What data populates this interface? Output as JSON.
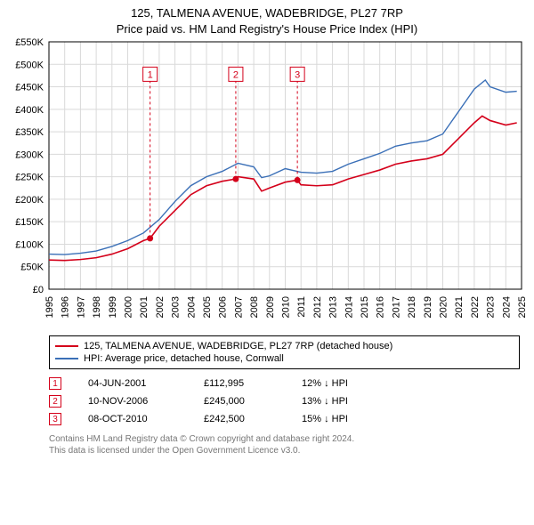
{
  "title_line1": "125, TALMENA AVENUE, WADEBRIDGE, PL27 7RP",
  "title_line2": "Price paid vs. HM Land Registry's House Price Index (HPI)",
  "chart": {
    "type": "line",
    "background_color": "#ffffff",
    "grid_color": "#d9d9d9",
    "axis_color": "#000000",
    "label_fontsize": 11,
    "x_years": [
      1995,
      1996,
      1997,
      1998,
      1999,
      2000,
      2001,
      2002,
      2003,
      2004,
      2005,
      2006,
      2007,
      2008,
      2009,
      2010,
      2011,
      2012,
      2013,
      2014,
      2015,
      2016,
      2017,
      2018,
      2019,
      2020,
      2021,
      2022,
      2023,
      2024,
      2025
    ],
    "y_ticks": [
      0,
      50000,
      100000,
      150000,
      200000,
      250000,
      300000,
      350000,
      400000,
      450000,
      500000,
      550000
    ],
    "y_tick_labels": [
      "£0",
      "£50K",
      "£100K",
      "£150K",
      "£200K",
      "£250K",
      "£300K",
      "£350K",
      "£400K",
      "£450K",
      "£500K",
      "£550K"
    ],
    "ylim": [
      0,
      550000
    ],
    "xlim": [
      1995,
      2025
    ],
    "series": [
      {
        "name": "property",
        "label": "125, TALMENA AVENUE, WADEBRIDGE, PL27 7RP (detached house)",
        "color": "#d4001a",
        "line_width": 1.6,
        "points": [
          [
            1995,
            65000
          ],
          [
            1996,
            64000
          ],
          [
            1997,
            66000
          ],
          [
            1998,
            70000
          ],
          [
            1999,
            78000
          ],
          [
            2000,
            90000
          ],
          [
            2001,
            108000
          ],
          [
            2001.42,
            112995
          ],
          [
            2002,
            140000
          ],
          [
            2003,
            175000
          ],
          [
            2004,
            210000
          ],
          [
            2005,
            230000
          ],
          [
            2006,
            240000
          ],
          [
            2006.86,
            245000
          ],
          [
            2007,
            250000
          ],
          [
            2008,
            245000
          ],
          [
            2008.5,
            218000
          ],
          [
            2009,
            225000
          ],
          [
            2010,
            238000
          ],
          [
            2010.77,
            242500
          ],
          [
            2011,
            232000
          ],
          [
            2012,
            230000
          ],
          [
            2013,
            232000
          ],
          [
            2014,
            245000
          ],
          [
            2015,
            255000
          ],
          [
            2016,
            265000
          ],
          [
            2017,
            278000
          ],
          [
            2018,
            285000
          ],
          [
            2019,
            290000
          ],
          [
            2020,
            300000
          ],
          [
            2021,
            335000
          ],
          [
            2022,
            370000
          ],
          [
            2022.5,
            385000
          ],
          [
            2023,
            375000
          ],
          [
            2024,
            365000
          ],
          [
            2024.7,
            370000
          ]
        ]
      },
      {
        "name": "hpi",
        "label": "HPI: Average price, detached house, Cornwall",
        "color": "#3a6fb7",
        "line_width": 1.4,
        "points": [
          [
            1995,
            78000
          ],
          [
            1996,
            77000
          ],
          [
            1997,
            80000
          ],
          [
            1998,
            85000
          ],
          [
            1999,
            95000
          ],
          [
            2000,
            108000
          ],
          [
            2001,
            125000
          ],
          [
            2002,
            155000
          ],
          [
            2003,
            195000
          ],
          [
            2004,
            230000
          ],
          [
            2005,
            250000
          ],
          [
            2006,
            262000
          ],
          [
            2007,
            280000
          ],
          [
            2008,
            272000
          ],
          [
            2008.5,
            248000
          ],
          [
            2009,
            252000
          ],
          [
            2010,
            268000
          ],
          [
            2011,
            260000
          ],
          [
            2012,
            258000
          ],
          [
            2013,
            262000
          ],
          [
            2014,
            278000
          ],
          [
            2015,
            290000
          ],
          [
            2016,
            302000
          ],
          [
            2017,
            318000
          ],
          [
            2018,
            325000
          ],
          [
            2019,
            330000
          ],
          [
            2020,
            345000
          ],
          [
            2021,
            395000
          ],
          [
            2022,
            445000
          ],
          [
            2022.7,
            465000
          ],
          [
            2023,
            450000
          ],
          [
            2024,
            438000
          ],
          [
            2024.7,
            440000
          ]
        ]
      }
    ],
    "sale_markers": [
      {
        "n": "1",
        "x": 2001.42,
        "y_flag": 478000,
        "y_dot": 112995
      },
      {
        "n": "2",
        "x": 2006.86,
        "y_flag": 478000,
        "y_dot": 245000
      },
      {
        "n": "3",
        "x": 2010.77,
        "y_flag": 478000,
        "y_dot": 242500
      }
    ],
    "marker_border_color": "#d4001a",
    "marker_dot_color": "#d4001a",
    "marker_dot_radius": 3.5
  },
  "legend": {
    "items": [
      {
        "color": "#d4001a",
        "label": "125, TALMENA AVENUE, WADEBRIDGE, PL27 7RP (detached house)"
      },
      {
        "color": "#3a6fb7",
        "label": "HPI: Average price, detached house, Cornwall"
      }
    ]
  },
  "sales": [
    {
      "n": "1",
      "date": "04-JUN-2001",
      "price": "£112,995",
      "delta": "12% ↓ HPI"
    },
    {
      "n": "2",
      "date": "10-NOV-2006",
      "price": "£245,000",
      "delta": "13% ↓ HPI"
    },
    {
      "n": "3",
      "date": "08-OCT-2010",
      "price": "£242,500",
      "delta": "15% ↓ HPI"
    }
  ],
  "footer_line1": "Contains HM Land Registry data © Crown copyright and database right 2024.",
  "footer_line2": "This data is licensed under the Open Government Licence v3.0."
}
